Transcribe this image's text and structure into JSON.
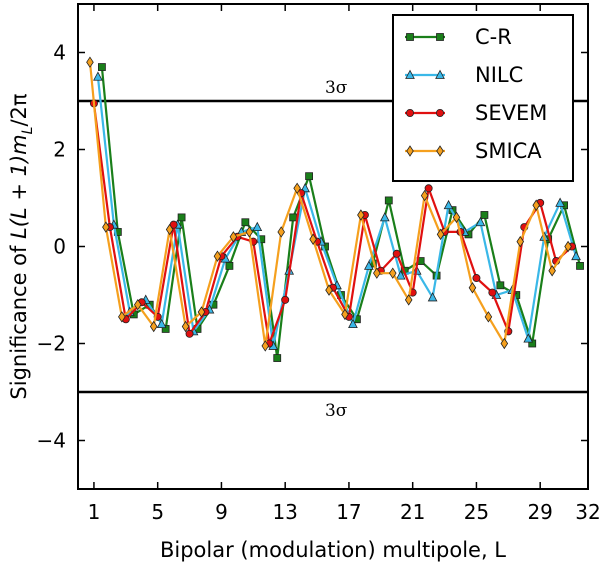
{
  "chart_data": {
    "type": "line",
    "title": "",
    "xlabel": "Bipolar (modulation) multipole, L",
    "ylabel_prefix": "Significance of ",
    "ylabel_math": "L(L + 1)m",
    "ylabel_sub": "L",
    "ylabel_suffix": "/2π",
    "xlim": [
      0,
      32
    ],
    "ylim": [
      -5,
      5
    ],
    "x_ticks": [
      1,
      5,
      9,
      13,
      17,
      21,
      25,
      29,
      32
    ],
    "x_tick_labels": [
      "1",
      "5",
      "9",
      "13",
      "17",
      "21",
      "25",
      "29",
      "32"
    ],
    "y_ticks": [
      4,
      2,
      0,
      -2,
      -4
    ],
    "y_tick_labels": [
      "4",
      "2",
      "0",
      "−2",
      "−4"
    ],
    "reference_lines": [
      {
        "y": 3,
        "label": "3σ"
      },
      {
        "y": -3,
        "label": "3σ"
      }
    ],
    "legend_position": "top-right",
    "series": [
      {
        "name": "C-R",
        "color": "#1a7f1a",
        "marker": "square",
        "offset": 0.5,
        "values": [
          3.7,
          0.3,
          -1.4,
          -1.2,
          -1.7,
          0.6,
          -1.7,
          -1.2,
          -0.4,
          0.5,
          0.15,
          -2.3,
          0.6,
          1.45,
          0.0,
          -1.0,
          -1.5,
          -0.35,
          0.95,
          -0.5,
          -0.3,
          -0.6,
          0.75,
          0.25,
          0.65,
          -0.8,
          -1.0,
          -2.0,
          0.15,
          0.85,
          -0.4
        ]
      },
      {
        "name": "NILC",
        "color": "#3ab8e8",
        "marker": "triangle",
        "offset": 0.25,
        "values": [
          3.5,
          0.45,
          -1.35,
          -1.1,
          -1.6,
          0.45,
          -1.75,
          -1.3,
          -0.25,
          0.3,
          0.4,
          -2.05,
          -0.5,
          1.2,
          0.1,
          -0.8,
          -1.6,
          -0.4,
          0.6,
          -0.6,
          -0.5,
          -1.05,
          0.85,
          0.3,
          0.5,
          -1.0,
          -0.9,
          -1.9,
          0.2,
          0.9,
          -0.2
        ]
      },
      {
        "name": "SEVEM",
        "color": "#e01010",
        "marker": "circle",
        "offset": 0.0,
        "values": [
          2.95,
          0.4,
          -1.5,
          -1.15,
          -1.45,
          0.45,
          -1.8,
          -1.35,
          -0.2,
          0.2,
          0.1,
          -2.0,
          -1.1,
          1.1,
          0.1,
          -0.85,
          -1.45,
          0.65,
          -0.5,
          -0.15,
          -0.95,
          1.2,
          0.3,
          0.3,
          -0.65,
          -0.95,
          -1.75,
          0.4,
          0.9,
          -0.3,
          0.0
        ]
      },
      {
        "name": "SMICA",
        "color": "#f5a01e",
        "marker": "diamond",
        "offset": -0.25,
        "values": [
          3.8,
          0.4,
          -1.45,
          -1.2,
          -1.65,
          0.35,
          -1.65,
          -1.35,
          -0.2,
          0.2,
          0.3,
          -2.05,
          0.3,
          1.2,
          0.15,
          -0.9,
          -1.4,
          0.65,
          -0.55,
          -0.55,
          -1.1,
          1.05,
          0.25,
          0.6,
          -0.85,
          -1.45,
          -2.0,
          0.1,
          0.85,
          -0.5,
          0.0
        ]
      }
    ]
  }
}
